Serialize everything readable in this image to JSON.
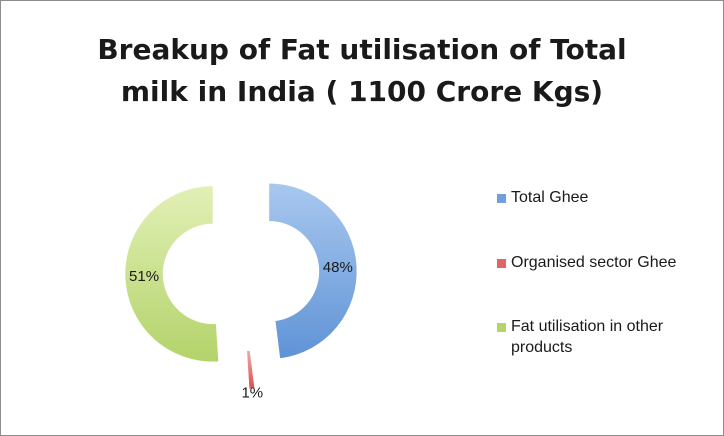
{
  "chart_data": {
    "type": "pie",
    "variant": "exploded-doughnut",
    "title_lines": [
      "Breakup of Fat utilisation of Total",
      "milk in India ( 1100 Crore Kgs)"
    ],
    "series": [
      {
        "name": "Total Ghee",
        "value": 48,
        "label": "48%",
        "color": "#6fa0dc"
      },
      {
        "name": "Organised sector Ghee",
        "value": 1,
        "label": "1%",
        "color": "#e06666"
      },
      {
        "name": "Fat utilisation in other products",
        "value": 51,
        "label": "51%",
        "color": "#b5d56a"
      }
    ],
    "legend_position": "right"
  }
}
